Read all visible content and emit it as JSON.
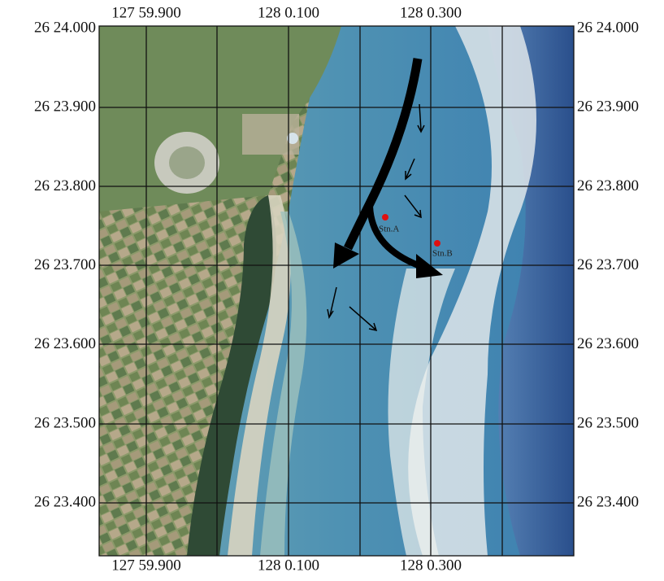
{
  "longitude_labels": [
    "127 59.900",
    "128 0.100",
    "128 0.300"
  ],
  "latitude_labels": [
    "26 24.000",
    "26 23.900",
    "26 23.800",
    "26 23.700",
    "26 23.600",
    "26 23.500",
    "26 23.400"
  ],
  "stations": [
    {
      "label": "Stn.A"
    },
    {
      "label": "Stn.B"
    }
  ]
}
